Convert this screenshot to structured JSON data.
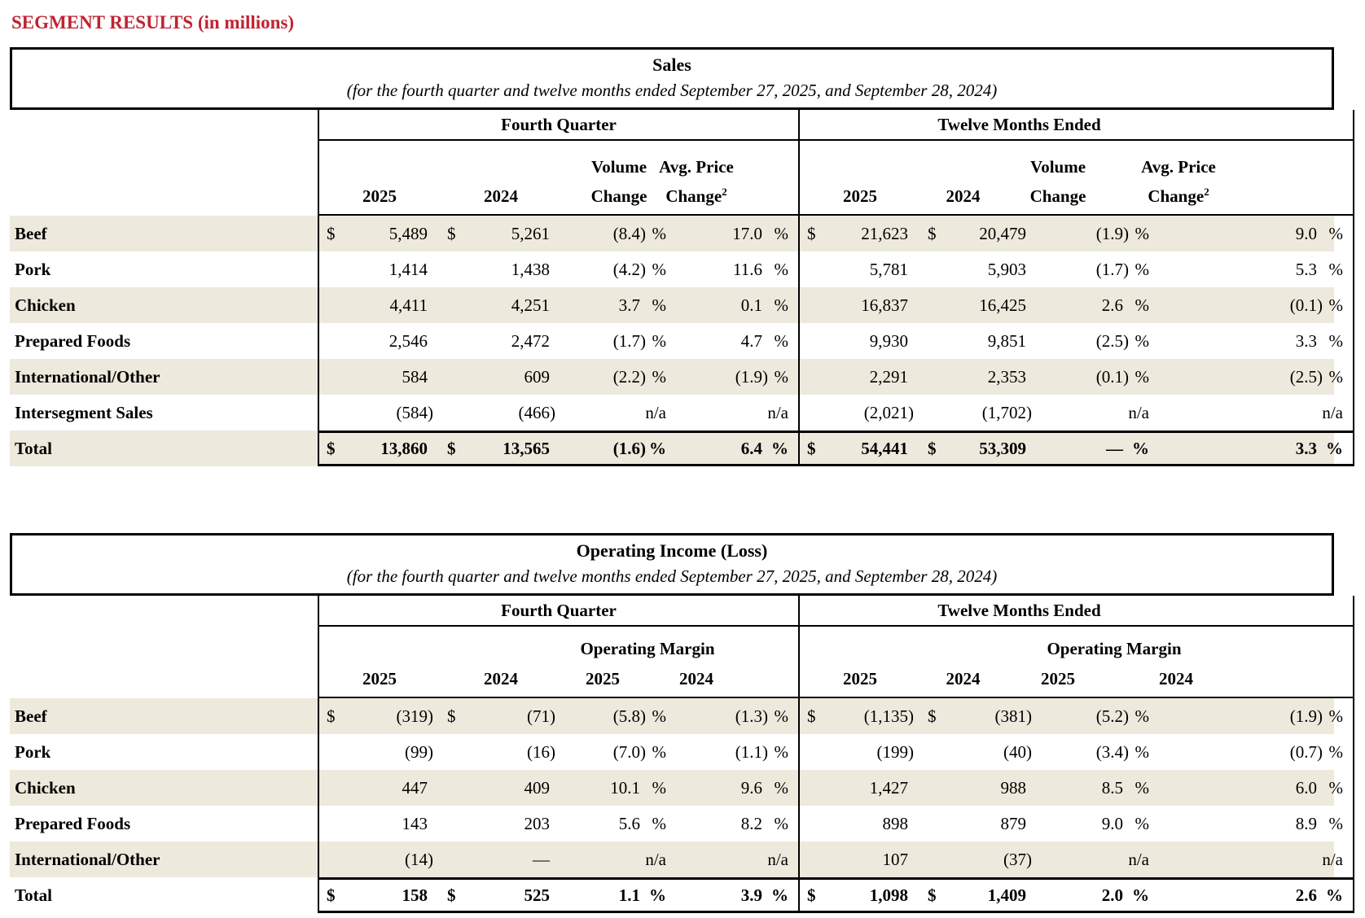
{
  "page_title": "SEGMENT RESULTS (in millions)",
  "colors": {
    "title_red": "#C02332",
    "stripe_beige": "#EDE9DC",
    "line_black": "#000000"
  },
  "sales": {
    "title": "Sales",
    "subtitle": "(for the fourth quarter and twelve months ended September 27, 2025, and September 28, 2024)",
    "group_q4": "Fourth Quarter",
    "group_tm": "Twelve Months Ended",
    "colheads": {
      "year_2025": "2025",
      "year_2024": "2024",
      "volume_l1": "Volume",
      "volume_l2": "Change",
      "price_l1": "Avg. Price",
      "price_l2": "Change",
      "price_sup": "2"
    },
    "rows": [
      {
        "label": "Beef",
        "shade": true,
        "bold": false,
        "total": false,
        "cells": [
          {
            "t": "m",
            "pre": "$",
            "v": "5,489",
            "cl": ""
          },
          {
            "t": "m",
            "pre": "$",
            "v": "5,261",
            "cl": ""
          },
          {
            "t": "p",
            "v": "(8.4",
            "cl": ")",
            "u": "%"
          },
          {
            "t": "p",
            "v": "17.0",
            "cl": "",
            "u": "%"
          },
          {
            "t": "m",
            "pre": "$",
            "v": "21,623",
            "cl": ""
          },
          {
            "t": "m",
            "pre": "$",
            "v": "20,479",
            "cl": ""
          },
          {
            "t": "p",
            "v": "(1.9",
            "cl": ")",
            "u": "%"
          },
          {
            "t": "p",
            "v": "9.0",
            "cl": "",
            "u": "%"
          }
        ]
      },
      {
        "label": "Pork",
        "shade": false,
        "bold": false,
        "total": false,
        "cells": [
          {
            "t": "m",
            "pre": "",
            "v": "1,414",
            "cl": ""
          },
          {
            "t": "m",
            "pre": "",
            "v": "1,438",
            "cl": ""
          },
          {
            "t": "p",
            "v": "(4.2",
            "cl": ")",
            "u": "%"
          },
          {
            "t": "p",
            "v": "11.6",
            "cl": "",
            "u": "%"
          },
          {
            "t": "m",
            "pre": "",
            "v": "5,781",
            "cl": ""
          },
          {
            "t": "m",
            "pre": "",
            "v": "5,903",
            "cl": ""
          },
          {
            "t": "p",
            "v": "(1.7",
            "cl": ")",
            "u": "%"
          },
          {
            "t": "p",
            "v": "5.3",
            "cl": "",
            "u": "%"
          }
        ]
      },
      {
        "label": "Chicken",
        "shade": true,
        "bold": false,
        "total": false,
        "cells": [
          {
            "t": "m",
            "pre": "",
            "v": "4,411",
            "cl": ""
          },
          {
            "t": "m",
            "pre": "",
            "v": "4,251",
            "cl": ""
          },
          {
            "t": "p",
            "v": "3.7",
            "cl": "",
            "u": "%"
          },
          {
            "t": "p",
            "v": "0.1",
            "cl": "",
            "u": "%"
          },
          {
            "t": "m",
            "pre": "",
            "v": "16,837",
            "cl": ""
          },
          {
            "t": "m",
            "pre": "",
            "v": "16,425",
            "cl": ""
          },
          {
            "t": "p",
            "v": "2.6",
            "cl": "",
            "u": "%"
          },
          {
            "t": "p",
            "v": "(0.1",
            "cl": ")",
            "u": "%"
          }
        ]
      },
      {
        "label": "Prepared Foods",
        "shade": false,
        "bold": false,
        "total": false,
        "cells": [
          {
            "t": "m",
            "pre": "",
            "v": "2,546",
            "cl": ""
          },
          {
            "t": "m",
            "pre": "",
            "v": "2,472",
            "cl": ""
          },
          {
            "t": "p",
            "v": "(1.7",
            "cl": ")",
            "u": "%"
          },
          {
            "t": "p",
            "v": "4.7",
            "cl": "",
            "u": "%"
          },
          {
            "t": "m",
            "pre": "",
            "v": "9,930",
            "cl": ""
          },
          {
            "t": "m",
            "pre": "",
            "v": "9,851",
            "cl": ""
          },
          {
            "t": "p",
            "v": "(2.5",
            "cl": ")",
            "u": "%"
          },
          {
            "t": "p",
            "v": "3.3",
            "cl": "",
            "u": "%"
          }
        ]
      },
      {
        "label": "International/Other",
        "shade": true,
        "bold": false,
        "total": false,
        "cells": [
          {
            "t": "m",
            "pre": "",
            "v": "584",
            "cl": ""
          },
          {
            "t": "m",
            "pre": "",
            "v": "609",
            "cl": ""
          },
          {
            "t": "p",
            "v": "(2.2",
            "cl": ")",
            "u": "%"
          },
          {
            "t": "p",
            "v": "(1.9",
            "cl": ")",
            "u": "%"
          },
          {
            "t": "m",
            "pre": "",
            "v": "2,291",
            "cl": ""
          },
          {
            "t": "m",
            "pre": "",
            "v": "2,353",
            "cl": ""
          },
          {
            "t": "p",
            "v": "(0.1",
            "cl": ")",
            "u": "%"
          },
          {
            "t": "p",
            "v": "(2.5",
            "cl": ")",
            "u": "%"
          }
        ]
      },
      {
        "label": "Intersegment Sales",
        "shade": false,
        "bold": false,
        "total": false,
        "cells": [
          {
            "t": "m",
            "pre": "",
            "v": "(584",
            "cl": ")"
          },
          {
            "t": "m",
            "pre": "",
            "v": "(466",
            "cl": ")"
          },
          {
            "t": "p",
            "v": "",
            "cl": "",
            "u": "n/a"
          },
          {
            "t": "p",
            "v": "",
            "cl": "",
            "u": "n/a"
          },
          {
            "t": "m",
            "pre": "",
            "v": "(2,021",
            "cl": ")"
          },
          {
            "t": "m",
            "pre": "",
            "v": "(1,702",
            "cl": ")"
          },
          {
            "t": "p",
            "v": "",
            "cl": "",
            "u": "n/a"
          },
          {
            "t": "p",
            "v": "",
            "cl": "",
            "u": "n/a"
          }
        ]
      },
      {
        "label": "Total",
        "shade": true,
        "bold": true,
        "total": true,
        "cells": [
          {
            "t": "m",
            "pre": "$",
            "v": "13,860",
            "cl": ""
          },
          {
            "t": "m",
            "pre": "$",
            "v": "13,565",
            "cl": ""
          },
          {
            "t": "p",
            "v": "(1.6",
            "cl": ")",
            "u": "%"
          },
          {
            "t": "p",
            "v": "6.4",
            "cl": "",
            "u": "%"
          },
          {
            "t": "m",
            "pre": "$",
            "v": "54,441",
            "cl": ""
          },
          {
            "t": "m",
            "pre": "$",
            "v": "53,309",
            "cl": ""
          },
          {
            "t": "p",
            "v": "—",
            "cl": "",
            "u": "%"
          },
          {
            "t": "p",
            "v": "3.3",
            "cl": "",
            "u": "%"
          }
        ]
      }
    ]
  },
  "operating": {
    "title": "Operating Income (Loss)",
    "subtitle": "(for the fourth quarter and twelve months ended September 27, 2025, and September 28, 2024)",
    "group_q4": "Fourth Quarter",
    "group_tm": "Twelve Months Ended",
    "colheads": {
      "year_2025": "2025",
      "year_2024": "2024",
      "margin": "Operating Margin"
    },
    "rows": [
      {
        "label": "Beef",
        "shade": true,
        "bold": false,
        "total": false,
        "cells": [
          {
            "t": "m",
            "pre": "$",
            "v": "(319",
            "cl": ")"
          },
          {
            "t": "m",
            "pre": "$",
            "v": "(71",
            "cl": ")"
          },
          {
            "t": "p",
            "v": "(5.8",
            "cl": ")",
            "u": "%"
          },
          {
            "t": "p",
            "v": "(1.3",
            "cl": ")",
            "u": "%"
          },
          {
            "t": "m",
            "pre": "$",
            "v": "(1,135",
            "cl": ")"
          },
          {
            "t": "m",
            "pre": "$",
            "v": "(381",
            "cl": ")"
          },
          {
            "t": "p",
            "v": "(5.2",
            "cl": ")",
            "u": "%"
          },
          {
            "t": "p",
            "v": "(1.9",
            "cl": ")",
            "u": "%"
          }
        ]
      },
      {
        "label": "Pork",
        "shade": false,
        "bold": false,
        "total": false,
        "cells": [
          {
            "t": "m",
            "pre": "",
            "v": "(99",
            "cl": ")"
          },
          {
            "t": "m",
            "pre": "",
            "v": "(16",
            "cl": ")"
          },
          {
            "t": "p",
            "v": "(7.0",
            "cl": ")",
            "u": "%"
          },
          {
            "t": "p",
            "v": "(1.1",
            "cl": ")",
            "u": "%"
          },
          {
            "t": "m",
            "pre": "",
            "v": "(199",
            "cl": ")"
          },
          {
            "t": "m",
            "pre": "",
            "v": "(40",
            "cl": ")"
          },
          {
            "t": "p",
            "v": "(3.4",
            "cl": ")",
            "u": "%"
          },
          {
            "t": "p",
            "v": "(0.7",
            "cl": ")",
            "u": "%"
          }
        ]
      },
      {
        "label": "Chicken",
        "shade": true,
        "bold": false,
        "total": false,
        "cells": [
          {
            "t": "m",
            "pre": "",
            "v": "447",
            "cl": ""
          },
          {
            "t": "m",
            "pre": "",
            "v": "409",
            "cl": ""
          },
          {
            "t": "p",
            "v": "10.1",
            "cl": "",
            "u": "%"
          },
          {
            "t": "p",
            "v": "9.6",
            "cl": "",
            "u": "%"
          },
          {
            "t": "m",
            "pre": "",
            "v": "1,427",
            "cl": ""
          },
          {
            "t": "m",
            "pre": "",
            "v": "988",
            "cl": ""
          },
          {
            "t": "p",
            "v": "8.5",
            "cl": "",
            "u": "%"
          },
          {
            "t": "p",
            "v": "6.0",
            "cl": "",
            "u": "%"
          }
        ]
      },
      {
        "label": "Prepared Foods",
        "shade": false,
        "bold": false,
        "total": false,
        "cells": [
          {
            "t": "m",
            "pre": "",
            "v": "143",
            "cl": ""
          },
          {
            "t": "m",
            "pre": "",
            "v": "203",
            "cl": ""
          },
          {
            "t": "p",
            "v": "5.6",
            "cl": "",
            "u": "%"
          },
          {
            "t": "p",
            "v": "8.2",
            "cl": "",
            "u": "%"
          },
          {
            "t": "m",
            "pre": "",
            "v": "898",
            "cl": ""
          },
          {
            "t": "m",
            "pre": "",
            "v": "879",
            "cl": ""
          },
          {
            "t": "p",
            "v": "9.0",
            "cl": "",
            "u": "%"
          },
          {
            "t": "p",
            "v": "8.9",
            "cl": "",
            "u": "%"
          }
        ]
      },
      {
        "label": "International/Other",
        "shade": true,
        "bold": false,
        "total": false,
        "cells": [
          {
            "t": "m",
            "pre": "",
            "v": "(14",
            "cl": ")"
          },
          {
            "t": "m",
            "pre": "",
            "v": "—",
            "cl": ""
          },
          {
            "t": "p",
            "v": "",
            "cl": "",
            "u": "n/a"
          },
          {
            "t": "p",
            "v": "",
            "cl": "",
            "u": "n/a"
          },
          {
            "t": "m",
            "pre": "",
            "v": "107",
            "cl": ""
          },
          {
            "t": "m",
            "pre": "",
            "v": "(37",
            "cl": ")"
          },
          {
            "t": "p",
            "v": "",
            "cl": "",
            "u": "n/a"
          },
          {
            "t": "p",
            "v": "",
            "cl": "",
            "u": "n/a"
          }
        ]
      },
      {
        "label": "Total",
        "shade": false,
        "bold": true,
        "total": true,
        "cells": [
          {
            "t": "m",
            "pre": "$",
            "v": "158",
            "cl": ""
          },
          {
            "t": "m",
            "pre": "$",
            "v": "525",
            "cl": ""
          },
          {
            "t": "p",
            "v": "1.1",
            "cl": "",
            "u": "%"
          },
          {
            "t": "p",
            "v": "3.9",
            "cl": "",
            "u": "%"
          },
          {
            "t": "m",
            "pre": "$",
            "v": "1,098",
            "cl": ""
          },
          {
            "t": "m",
            "pre": "$",
            "v": "1,409",
            "cl": ""
          },
          {
            "t": "p",
            "v": "2.0",
            "cl": "",
            "u": "%"
          },
          {
            "t": "p",
            "v": "2.6",
            "cl": "",
            "u": "%"
          }
        ]
      }
    ]
  }
}
